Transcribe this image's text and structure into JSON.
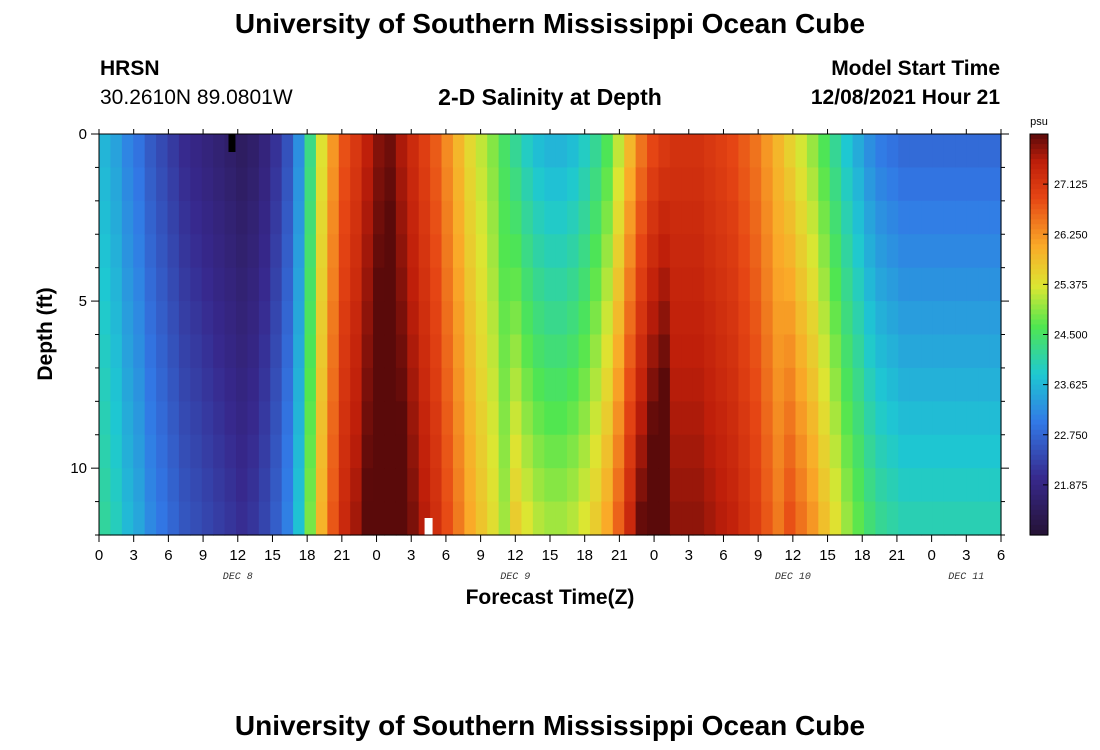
{
  "header": {
    "title": "University of Southern Mississippi Ocean Cube",
    "station": "HRSN",
    "coords": "30.2610N  89.0801W",
    "plot_title": "2-D Salinity at Depth",
    "model_start_label": "Model Start Time",
    "model_start_value": "12/08/2021 Hour 21"
  },
  "footer": {
    "title": "University of Southern Mississippi Ocean Cube"
  },
  "chart_data": {
    "type": "heatmap",
    "title": "2-D Salinity at Depth",
    "xlabel": "Forecast Time(Z)",
    "ylabel": "Depth (ft)",
    "x_hours_range": [
      0,
      78
    ],
    "ylim": [
      0,
      12
    ],
    "x_tick_labels": [
      "0",
      "3",
      "6",
      "9",
      "12",
      "15",
      "18",
      "21",
      "0",
      "3",
      "6",
      "9",
      "12",
      "15",
      "18",
      "21",
      "0",
      "3",
      "6",
      "9",
      "12",
      "15",
      "18",
      "21",
      "0",
      "3",
      "6"
    ],
    "y_ticks": [
      0,
      5,
      10
    ],
    "y_tick_labels": [
      "0",
      "5",
      "10"
    ],
    "day_labels": [
      {
        "label": "DEC 8",
        "hour": 12
      },
      {
        "label": "DEC 9",
        "hour": 36
      },
      {
        "label": "DEC 10",
        "hour": 60
      },
      {
        "label": "DEC 11",
        "hour": 75
      }
    ],
    "colorbar": {
      "unit": "psu",
      "range": [
        21.0,
        28.0
      ],
      "ticks": [
        21.875,
        22.75,
        23.625,
        24.5,
        25.375,
        26.25,
        27.125
      ],
      "tick_labels": [
        "21.875",
        "22.750",
        "23.625",
        "24.500",
        "25.375",
        "26.250",
        "27.125"
      ]
    },
    "columns_per_hour": 1,
    "depth_rows": 12,
    "surface_salinity_by_hour": [
      23.6,
      23.4,
      23.1,
      22.9,
      22.6,
      22.4,
      22.2,
      22.0,
      21.9,
      21.8,
      21.7,
      21.6,
      21.5,
      21.6,
      21.8,
      22.1,
      22.5,
      23.2,
      24.3,
      25.4,
      26.2,
      26.8,
      27.1,
      27.5,
      27.8,
      27.9,
      27.6,
      27.3,
      27.0,
      26.7,
      26.3,
      25.9,
      25.5,
      25.2,
      24.9,
      24.5,
      24.2,
      23.9,
      23.7,
      23.6,
      23.6,
      23.7,
      23.9,
      24.2,
      24.6,
      25.2,
      25.9,
      26.5,
      26.9,
      27.1,
      27.2,
      27.2,
      27.2,
      27.1,
      27.0,
      26.9,
      26.7,
      26.5,
      26.2,
      25.9,
      25.6,
      25.3,
      25.0,
      24.6,
      24.2,
      23.8,
      23.5,
      23.2,
      23.0,
      22.9,
      22.8,
      22.8,
      22.8,
      22.8,
      22.8,
      22.8,
      22.8,
      22.8,
      22.8
    ]
  }
}
